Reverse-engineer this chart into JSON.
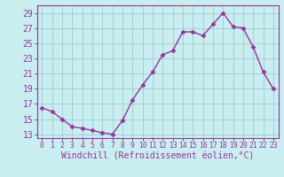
{
  "x": [
    0,
    1,
    2,
    3,
    4,
    5,
    6,
    7,
    8,
    9,
    10,
    11,
    12,
    13,
    14,
    15,
    16,
    17,
    18,
    19,
    20,
    21,
    22,
    23
  ],
  "y": [
    16.5,
    16.0,
    15.0,
    14.0,
    13.8,
    13.5,
    13.2,
    13.0,
    14.8,
    17.5,
    19.5,
    21.2,
    23.5,
    24.0,
    26.5,
    26.5,
    26.0,
    27.5,
    29.0,
    27.2,
    27.0,
    24.5,
    21.2,
    19.0
  ],
  "line_color": "#993399",
  "marker": "D",
  "marker_size": 2.5,
  "bg_color": "#c8eef0",
  "grid_color": "#a0ccd0",
  "xlabel": "Windchill (Refroidissement éolien,°C)",
  "xlim": [
    -0.5,
    23.5
  ],
  "ylim": [
    12.5,
    30
  ],
  "yticks": [
    13,
    15,
    17,
    19,
    21,
    23,
    25,
    27,
    29
  ],
  "xticks": [
    0,
    1,
    2,
    3,
    4,
    5,
    6,
    7,
    8,
    9,
    10,
    11,
    12,
    13,
    14,
    15,
    16,
    17,
    18,
    19,
    20,
    21,
    22,
    23
  ],
  "xlabel_fontsize": 7,
  "ytick_fontsize": 7,
  "xtick_fontsize": 5.8,
  "line_width": 1.0,
  "spine_color": "#993399"
}
